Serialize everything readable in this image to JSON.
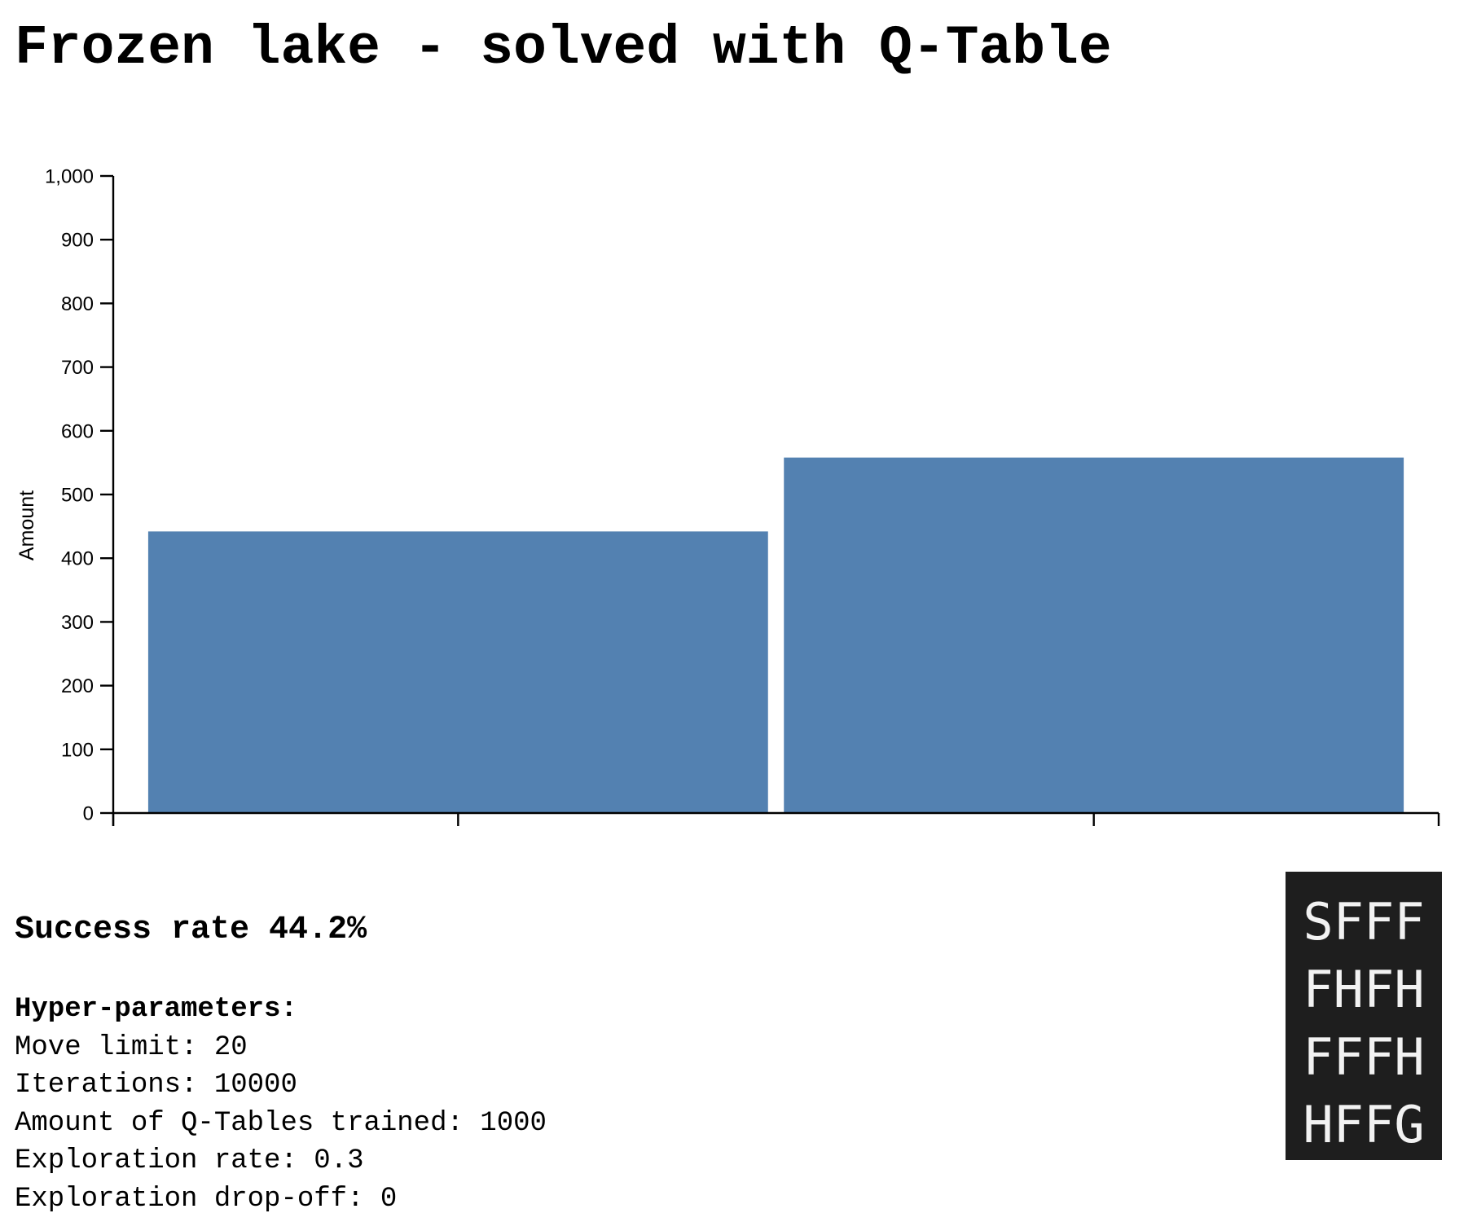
{
  "title": "Frozen lake - solved with Q-Table",
  "chart_data": {
    "type": "bar",
    "categories": [
      "",
      ""
    ],
    "values": [
      442,
      558
    ],
    "ylabel": "Amount",
    "xlabel": "",
    "ylim": [
      0,
      1000
    ],
    "yticks": [
      0,
      100,
      200,
      300,
      400,
      500,
      600,
      700,
      800,
      900,
      1000
    ],
    "ytick_labels": [
      "0",
      "100",
      "200",
      "300",
      "400",
      "500",
      "600",
      "700",
      "800",
      "900",
      "1,000"
    ],
    "grid": false,
    "bar_color": "#5381b1"
  },
  "results": {
    "success_rate": "Success rate 44.2%"
  },
  "hyperparameters": {
    "heading": "Hyper-parameters:",
    "lines": [
      "Move limit: 20",
      "Iterations: 10000",
      "Amount of Q-Tables trained: 1000",
      "Exploration rate: 0.3",
      "Exploration drop-off: 0"
    ]
  },
  "lake_map": {
    "rows": [
      "SFFF",
      "FHFH",
      "FFFH",
      "HFFG"
    ]
  }
}
